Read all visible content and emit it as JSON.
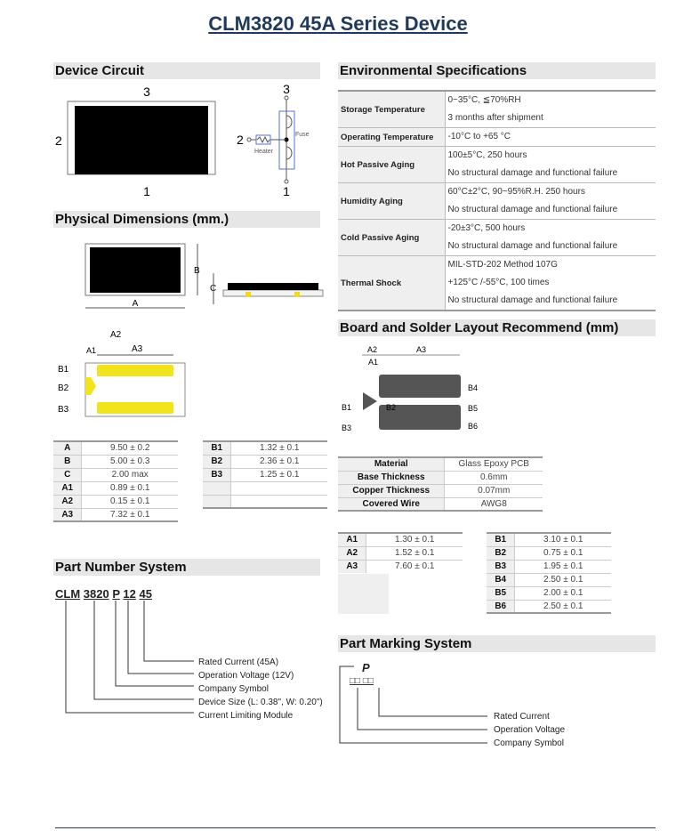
{
  "title": "CLM3820 45A Series Device",
  "sections": {
    "device_circuit": "Device Circuit",
    "physical_dimensions": "Physical Dimensions (mm.)",
    "part_number_system": "Part Number System",
    "environmental": "Environmental Specifications",
    "board_layout": "Board and Solder Layout Recommend (mm)",
    "part_marking": "Part Marking System"
  },
  "circuit": {
    "pin3": "3",
    "pin2": "2",
    "pin1": "1",
    "heater": "Heater",
    "fuse": "Fuse"
  },
  "dim_labels": {
    "A": "A",
    "B": "B",
    "C": "C",
    "A1": "A1",
    "A2": "A2",
    "A3": "A3",
    "B1": "B1",
    "B2": "B2",
    "B3": "B3",
    "B4": "B4",
    "B5": "B5",
    "B6": "B6"
  },
  "environmental": [
    {
      "name": "Storage Temperature",
      "values": [
        "0~35°C, ≦70%RH",
        "3 months after shipment"
      ]
    },
    {
      "name": "Operating Temperature",
      "values": [
        "-10°C to +65 °C"
      ]
    },
    {
      "name": "Hot Passive Aging",
      "values": [
        "100±5°C, 250 hours",
        "No structural damage and functional failure"
      ]
    },
    {
      "name": "Humidity Aging",
      "values": [
        "60°C±2°C, 90~95%R.H. 250 hours",
        "No structural damage and functional failure"
      ]
    },
    {
      "name": "Cold Passive Aging",
      "values": [
        "-20±3°C, 500 hours",
        "No structural damage and functional failure"
      ]
    },
    {
      "name": "Thermal Shock",
      "values": [
        "MIL-STD-202 Method 107G",
        "+125°C /-55°C, 100 times",
        "No structural damage and functional failure"
      ]
    }
  ],
  "device_dims_a": [
    [
      "A",
      "9.50 ± 0.2"
    ],
    [
      "B",
      "5.00 ± 0.3"
    ],
    [
      "C",
      "2.00 max"
    ],
    [
      "A1",
      "0.89 ± 0.1"
    ],
    [
      "A2",
      "0.15 ± 0.1"
    ],
    [
      "A3",
      "7.32 ± 0.1"
    ]
  ],
  "device_dims_b": [
    [
      "B1",
      "1.32 ± 0.1"
    ],
    [
      "B2",
      "2.36 ± 0.1"
    ],
    [
      "B3",
      "1.25 ± 0.1"
    ],
    [
      "",
      ""
    ],
    [
      "",
      ""
    ]
  ],
  "board_material": [
    [
      "Material",
      "Glass Epoxy PCB"
    ],
    [
      "Base Thickness",
      "0.6mm"
    ],
    [
      "Copper Thickness",
      "0.07mm"
    ],
    [
      "Covered Wire",
      "AWG8"
    ]
  ],
  "board_dims_a": [
    [
      "A1",
      "1.30 ± 0.1"
    ],
    [
      "A2",
      "1.52 ± 0.1"
    ],
    [
      "A3",
      "7.60 ± 0.1"
    ]
  ],
  "board_dims_b": [
    [
      "B1",
      "3.10 ± 0.1"
    ],
    [
      "B2",
      "0.75 ± 0.1"
    ],
    [
      "B3",
      "1.95 ± 0.1"
    ],
    [
      "B4",
      "2.50 ± 0.1"
    ],
    [
      "B5",
      "2.00 ± 0.1"
    ],
    [
      "B6",
      "2.50 ± 0.1"
    ]
  ],
  "part_number": {
    "segments": [
      "CLM",
      "3820",
      "P",
      "12",
      "45"
    ],
    "legend": [
      "Rated Current (45A)",
      "Operation Voltage (12V)",
      "Company Symbol",
      "Device Size (L: 0.38\", W: 0.20\")",
      "Current Limiting Module"
    ]
  },
  "part_marking": {
    "symbol": "P",
    "boxes": "□□ □□",
    "legend": [
      "Rated Current",
      "Operation Voltage",
      "Company Symbol"
    ]
  }
}
